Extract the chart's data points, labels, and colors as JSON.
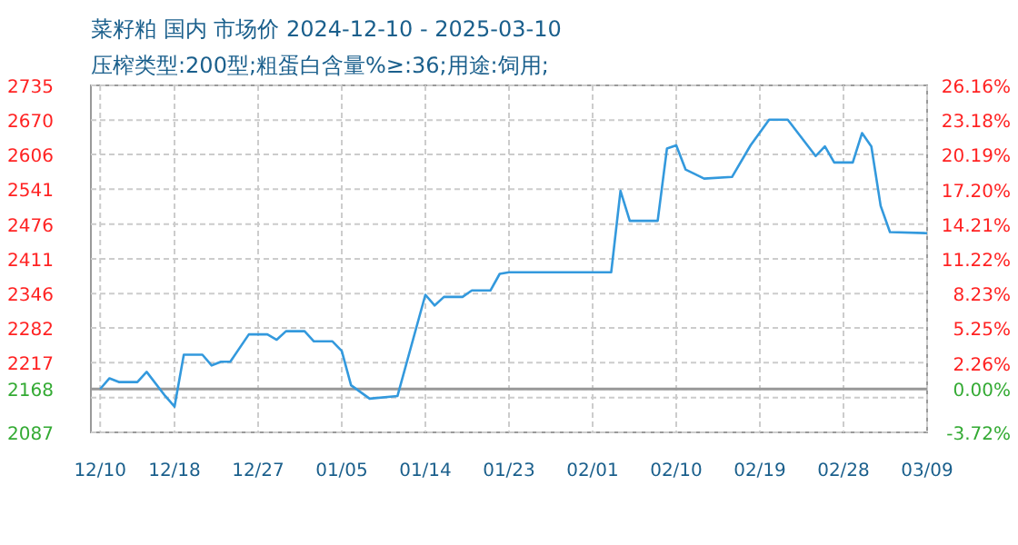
{
  "chart_data": {
    "type": "line",
    "title": "菜籽粕 国内 市场价 2024-12-10 - 2025-03-10",
    "subtitle": "压榨类型:200型;粗蛋白含量%≥:36;用途:饲用;",
    "x": [
      "2024-12-10",
      "2024-12-11",
      "2024-12-12",
      "2024-12-14",
      "2024-12-15",
      "2024-12-17",
      "2024-12-18",
      "2024-12-19",
      "2024-12-21",
      "2024-12-22",
      "2024-12-23",
      "2024-12-24",
      "2024-12-26",
      "2024-12-28",
      "2024-12-29",
      "2024-12-30",
      "2025-01-01",
      "2025-01-02",
      "2025-01-04",
      "2025-01-05",
      "2025-01-06",
      "2025-01-08",
      "2025-01-11",
      "2025-01-14",
      "2025-01-15",
      "2025-01-16",
      "2025-01-18",
      "2025-01-19",
      "2025-01-21",
      "2025-01-22",
      "2025-01-23",
      "2025-02-03",
      "2025-02-04",
      "2025-02-05",
      "2025-02-08",
      "2025-02-09",
      "2025-02-10",
      "2025-02-11",
      "2025-02-13",
      "2025-02-16",
      "2025-02-18",
      "2025-02-20",
      "2025-02-22",
      "2025-02-25",
      "2025-02-26",
      "2025-02-27",
      "2025-03-01",
      "2025-03-02",
      "2025-03-03",
      "2025-03-04",
      "2025-03-05",
      "2025-03-09"
    ],
    "series": [
      {
        "color": "#3399dd",
        "values": [
          2168,
          2188,
          2181,
          2181,
          2200,
          2155,
          2135,
          2232,
          2232,
          2212,
          2219,
          2219,
          2270,
          2270,
          2260,
          2276,
          2276,
          2257,
          2257,
          2239,
          2175,
          2150,
          2155,
          2344,
          2324,
          2340,
          2340,
          2352,
          2352,
          2383,
          2386,
          2386,
          2538,
          2482,
          2482,
          2617,
          2623,
          2578,
          2561,
          2564,
          2623,
          2671,
          2671,
          2603,
          2621,
          2591,
          2591,
          2646,
          2621,
          2510,
          2461,
          2459
        ]
      }
    ],
    "xlim": [
      "2024-12-09",
      "2025-03-09"
    ],
    "xticks": [
      {
        "value": "2024-12-10",
        "label": "12/10"
      },
      {
        "value": "2024-12-18",
        "label": "12/18"
      },
      {
        "value": "2024-12-27",
        "label": "12/27"
      },
      {
        "value": "2025-01-05",
        "label": "01/05"
      },
      {
        "value": "2025-01-14",
        "label": "01/14"
      },
      {
        "value": "2025-01-23",
        "label": "01/23"
      },
      {
        "value": "2025-02-01",
        "label": "02/01"
      },
      {
        "value": "2025-02-10",
        "label": "02/10"
      },
      {
        "value": "2025-02-19",
        "label": "02/19"
      },
      {
        "value": "2025-02-28",
        "label": "02/28"
      },
      {
        "value": "2025-03-09",
        "label": "03/09"
      }
    ],
    "ylim": [
      2087,
      2735
    ],
    "yticks": [
      2087,
      {
        "value": 2152,
        "label": null
      },
      2168,
      2217,
      2282,
      2346,
      2411,
      2476,
      2541,
      2606,
      2670,
      2735
    ],
    "y2lim": [
      -3.72,
      26.16
    ],
    "y2ticks": [
      {
        "value": -3.72,
        "label": "-3.72%"
      },
      {
        "value": 0,
        "label": "0.00%"
      },
      {
        "value": 2.26,
        "label": "2.26%"
      },
      {
        "value": 5.25,
        "label": "5.25%"
      },
      {
        "value": 8.23,
        "label": "8.23%"
      },
      {
        "value": 11.22,
        "label": "11.22%"
      },
      {
        "value": 14.21,
        "label": "14.21%"
      },
      {
        "value": 17.2,
        "label": "17.20%"
      },
      {
        "value": 20.19,
        "label": "20.19%"
      },
      {
        "value": 23.18,
        "label": "23.18%"
      },
      {
        "value": 26.16,
        "label": "26.16%"
      }
    ],
    "ref_lines": [
      {
        "axis": "y",
        "value": 2168,
        "color": "#999999"
      }
    ],
    "grid": true
  }
}
